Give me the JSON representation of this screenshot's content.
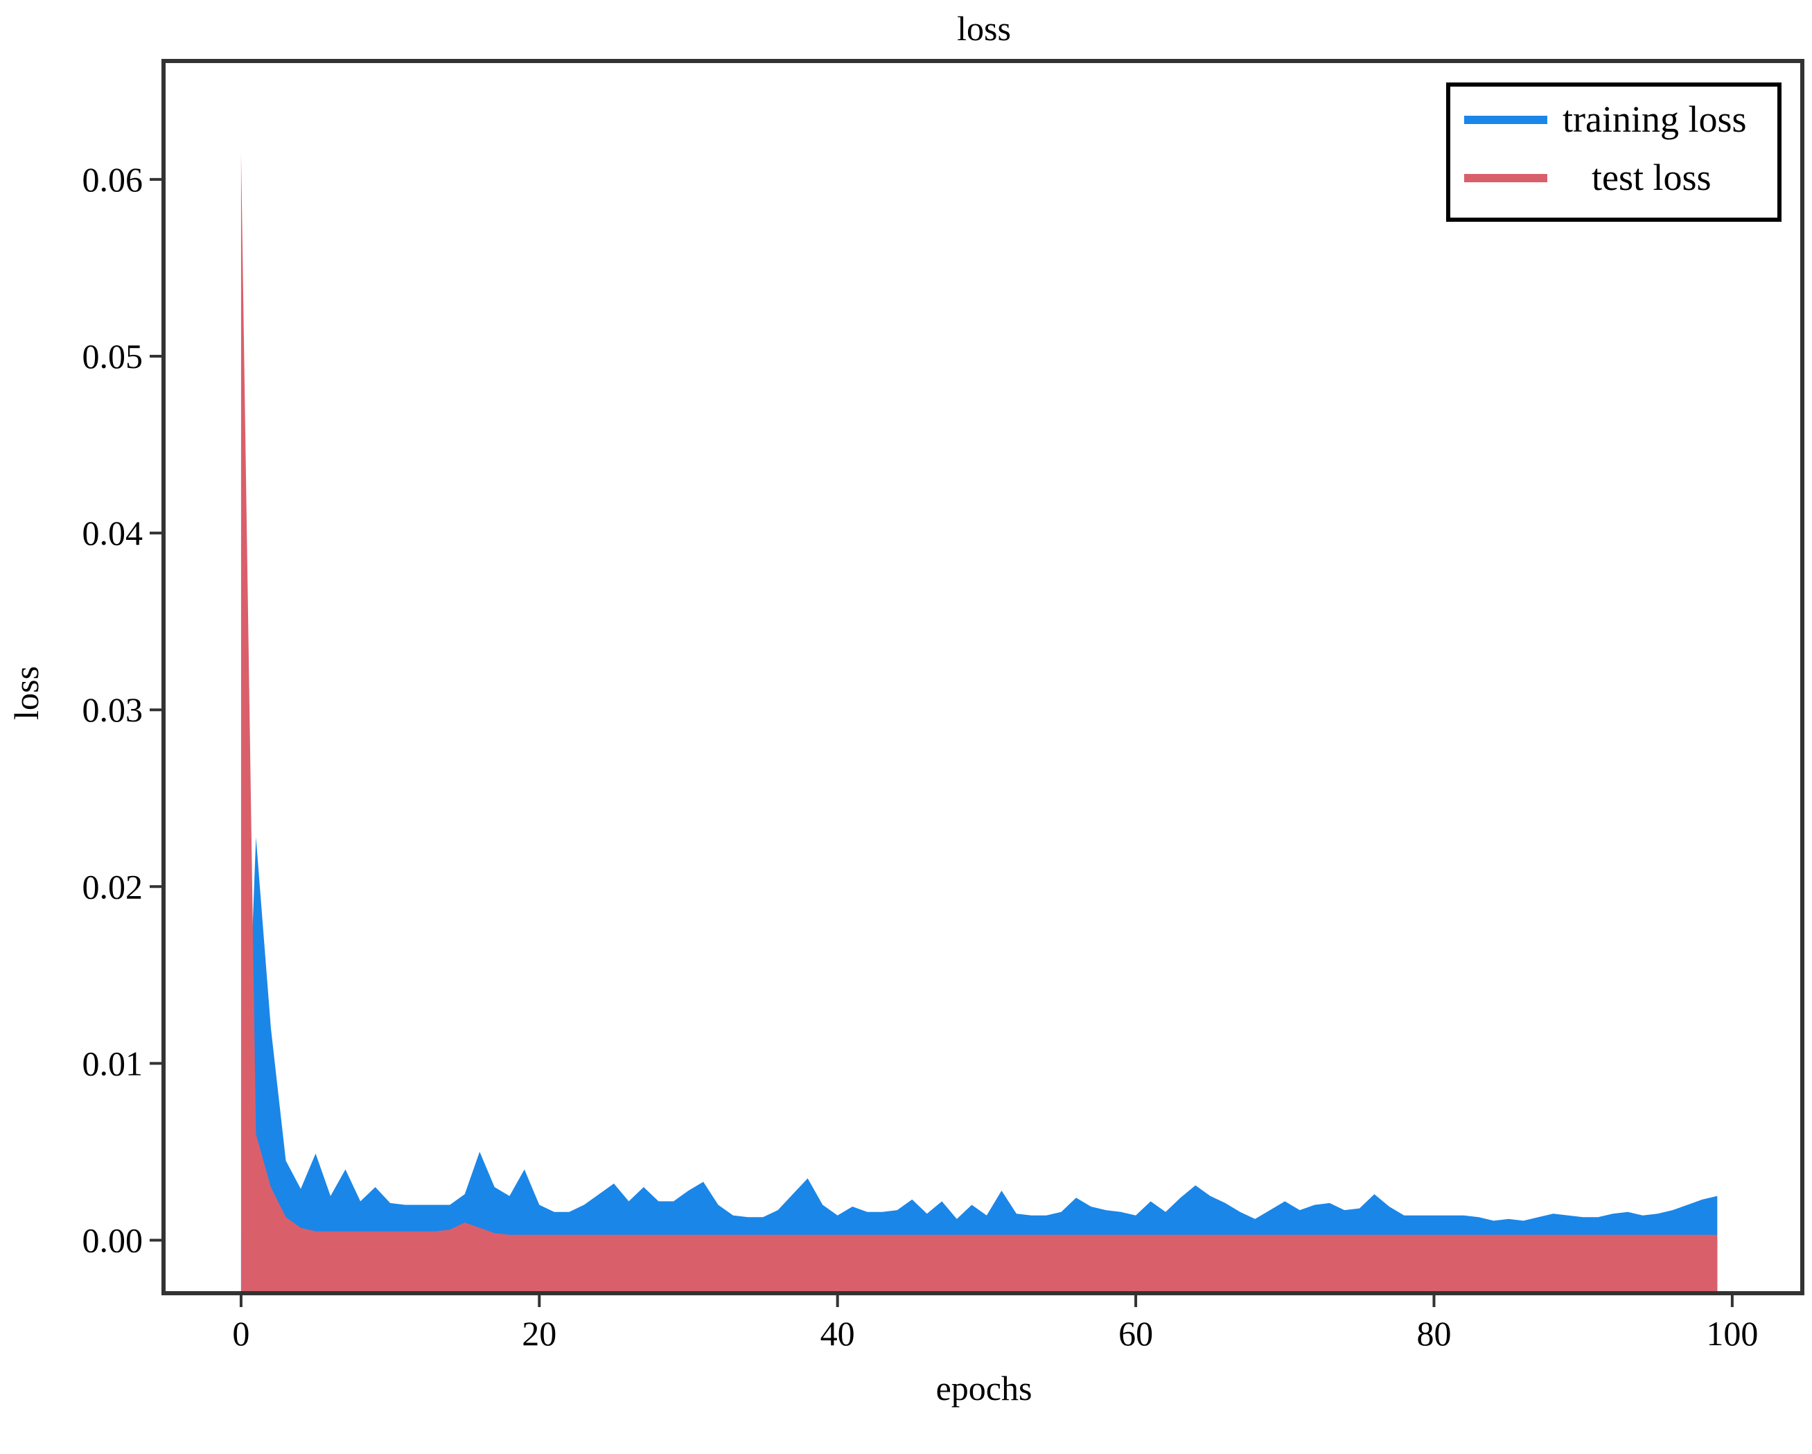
{
  "chart_data": {
    "type": "area",
    "title": "loss",
    "xlabel": "epochs",
    "ylabel": "loss",
    "xlim": [
      -5.2,
      104.7
    ],
    "ylim": [
      -0.003,
      0.0667
    ],
    "xticks": [
      0,
      20,
      40,
      60,
      80,
      100
    ],
    "xtick_labels": [
      "0",
      "20",
      "40",
      "60",
      "80",
      "100"
    ],
    "yticks": [
      0.0,
      0.01,
      0.02,
      0.03,
      0.04,
      0.05,
      0.06
    ],
    "ytick_labels": [
      "0.00",
      "0.01",
      "0.02",
      "0.03",
      "0.04",
      "0.05",
      "0.06"
    ],
    "grid": false,
    "legend": {
      "position": "top-right"
    },
    "x": [
      0,
      1,
      2,
      3,
      4,
      5,
      6,
      7,
      8,
      9,
      10,
      11,
      12,
      13,
      14,
      15,
      16,
      17,
      18,
      19,
      20,
      21,
      22,
      23,
      24,
      25,
      26,
      27,
      28,
      29,
      30,
      31,
      32,
      33,
      34,
      35,
      36,
      37,
      38,
      39,
      40,
      41,
      42,
      43,
      44,
      45,
      46,
      47,
      48,
      49,
      50,
      51,
      52,
      53,
      54,
      55,
      56,
      57,
      58,
      59,
      60,
      61,
      62,
      63,
      64,
      65,
      66,
      67,
      68,
      69,
      70,
      71,
      72,
      73,
      74,
      75,
      76,
      77,
      78,
      79,
      80,
      81,
      82,
      83,
      84,
      85,
      86,
      87,
      88,
      89,
      90,
      91,
      92,
      93,
      94,
      95,
      96,
      97,
      98,
      99
    ],
    "series": [
      {
        "name": "training loss",
        "color": "#1a86e8",
        "values": [
          0.0,
          0.0228,
          0.012,
          0.0045,
          0.0029,
          0.0049,
          0.0025,
          0.004,
          0.0022,
          0.003,
          0.0021,
          0.002,
          0.002,
          0.002,
          0.002,
          0.0026,
          0.005,
          0.003,
          0.0025,
          0.004,
          0.002,
          0.0016,
          0.0016,
          0.002,
          0.0026,
          0.0032,
          0.0022,
          0.003,
          0.0022,
          0.0022,
          0.0028,
          0.0033,
          0.002,
          0.0014,
          0.0013,
          0.0013,
          0.0017,
          0.0026,
          0.0035,
          0.002,
          0.0014,
          0.0019,
          0.0016,
          0.0016,
          0.0017,
          0.0023,
          0.0015,
          0.0022,
          0.0012,
          0.002,
          0.0014,
          0.0028,
          0.0015,
          0.0014,
          0.0014,
          0.0016,
          0.0024,
          0.0019,
          0.0017,
          0.0016,
          0.0014,
          0.0022,
          0.0016,
          0.0024,
          0.0031,
          0.0025,
          0.0021,
          0.0016,
          0.0012,
          0.0017,
          0.0022,
          0.0017,
          0.002,
          0.0021,
          0.0017,
          0.0018,
          0.0026,
          0.0019,
          0.0014,
          0.0014,
          0.0014,
          0.0014,
          0.0014,
          0.0013,
          0.0011,
          0.0012,
          0.0011,
          0.0013,
          0.0015,
          0.0014,
          0.0013,
          0.0013,
          0.0015,
          0.0016,
          0.0014,
          0.0015,
          0.0017,
          0.002,
          0.0023,
          0.0025
        ]
      },
      {
        "name": "test loss",
        "color": "#d9606b",
        "values": [
          0.0615,
          0.006,
          0.003,
          0.0013,
          0.0007,
          0.0005,
          0.0005,
          0.0005,
          0.0005,
          0.0005,
          0.0005,
          0.0005,
          0.0005,
          0.0005,
          0.0006,
          0.001,
          0.0007,
          0.0004,
          0.0003,
          0.0003,
          0.0003,
          0.0003,
          0.0003,
          0.0003,
          0.0003,
          0.0003,
          0.0003,
          0.0003,
          0.0003,
          0.0003,
          0.0003,
          0.0003,
          0.0003,
          0.0003,
          0.0003,
          0.0003,
          0.0003,
          0.0003,
          0.0003,
          0.0003,
          0.0003,
          0.0003,
          0.0003,
          0.0003,
          0.0003,
          0.0003,
          0.0003,
          0.0003,
          0.0003,
          0.0003,
          0.0003,
          0.0003,
          0.0003,
          0.0003,
          0.0003,
          0.0003,
          0.0003,
          0.0003,
          0.0003,
          0.0003,
          0.0003,
          0.0003,
          0.0003,
          0.0003,
          0.0003,
          0.0003,
          0.0003,
          0.0003,
          0.0003,
          0.0003,
          0.0003,
          0.0003,
          0.0003,
          0.0003,
          0.0003,
          0.0003,
          0.0003,
          0.0003,
          0.0003,
          0.0003,
          0.0003,
          0.0003,
          0.0003,
          0.0003,
          0.0003,
          0.0003,
          0.0003,
          0.0003,
          0.0003,
          0.0003,
          0.0003,
          0.0003,
          0.0003,
          0.0003,
          0.0003,
          0.0003,
          0.0003,
          0.0003,
          0.0003,
          0.0003
        ]
      }
    ]
  }
}
